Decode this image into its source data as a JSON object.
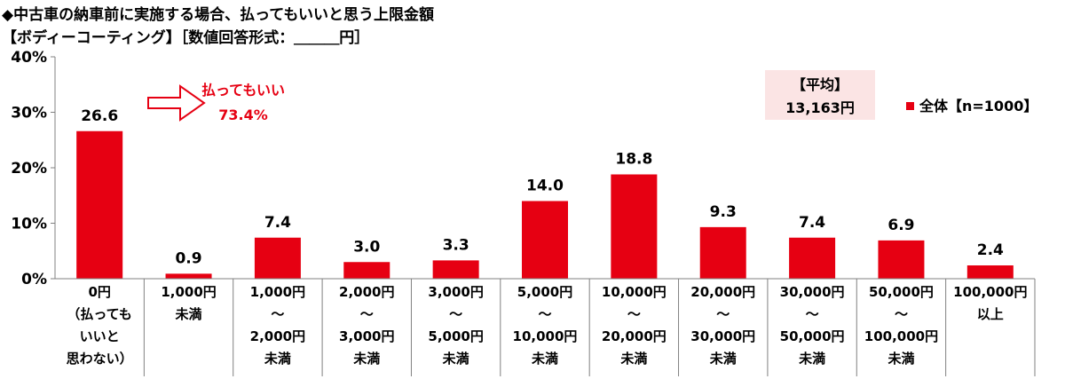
{
  "page": {
    "title_line1": "◆中古車の納車前に実施する場合、払ってもいいと思う上限金額",
    "title_line2": "【ボディーコーティング】［数値回答形式：＿＿＿円］"
  },
  "annotation": {
    "line1": "払ってもいい",
    "line2": "73.4%"
  },
  "average_box": {
    "label": "【平均】",
    "value": "13,163円"
  },
  "colors": {
    "bar": "#e60012",
    "annotation": "#e60012",
    "average_box_bg": "#fbe4e4"
  },
  "chart_data": {
    "type": "bar",
    "yaxis_tick_labels": [
      "0%",
      "10%",
      "20%",
      "30%",
      "40%"
    ],
    "ylim": [
      0,
      40
    ],
    "categories": [
      [
        "0円",
        "（払っても",
        "いいと",
        "思わない）"
      ],
      [
        "1,000円",
        "未満"
      ],
      [
        "1,000円",
        "～",
        "2,000円",
        "未満"
      ],
      [
        "2,000円",
        "～",
        "3,000円",
        "未満"
      ],
      [
        "3,000円",
        "～",
        "5,000円",
        "未満"
      ],
      [
        "5,000円",
        "～",
        "10,000円",
        "未満"
      ],
      [
        "10,000円",
        "～",
        "20,000円",
        "未満"
      ],
      [
        "20,000円",
        "～",
        "30,000円",
        "未満"
      ],
      [
        "30,000円",
        "～",
        "50,000円",
        "未満"
      ],
      [
        "50,000円",
        "～",
        "100,000円",
        "未満"
      ],
      [
        "100,000円",
        "以上"
      ]
    ],
    "series": [
      {
        "name": "全体【n=1000】",
        "values": [
          26.6,
          0.9,
          7.4,
          3.0,
          3.3,
          14.0,
          18.8,
          9.3,
          7.4,
          6.9,
          2.4
        ],
        "labels": [
          "26.6",
          "0.9",
          "7.4",
          "3.0",
          "3.3",
          "14.0",
          "18.8",
          "9.3",
          "7.4",
          "6.9",
          "2.4"
        ]
      }
    ],
    "grid": false,
    "legend_position": "right"
  }
}
